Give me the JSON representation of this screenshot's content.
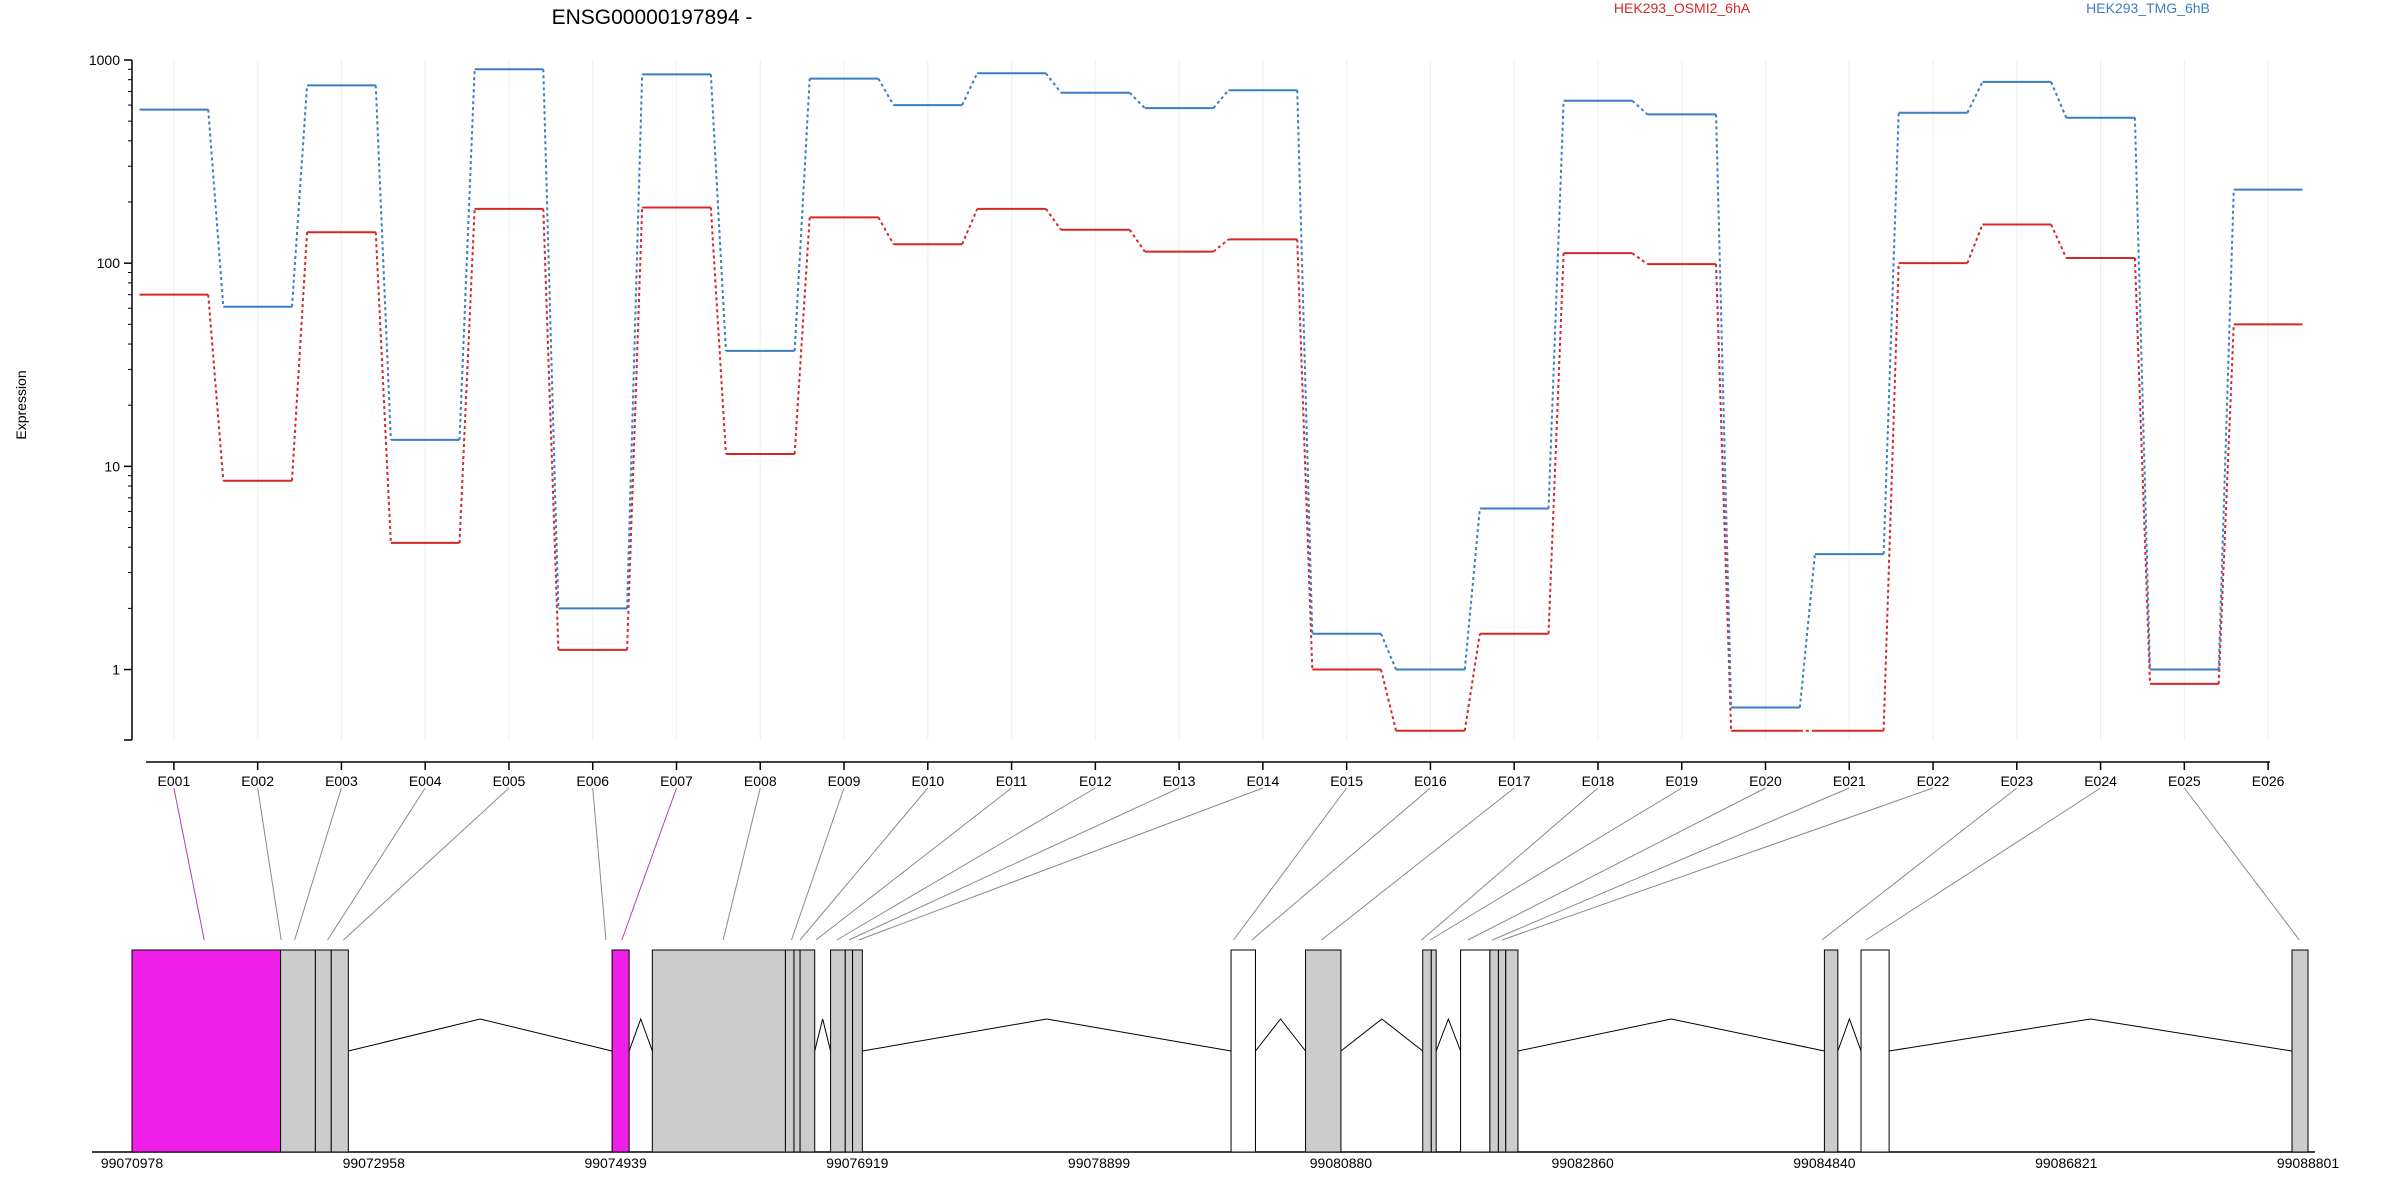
{
  "chart_data": {
    "type": "line",
    "title": "ENSG00000197894 -",
    "ylabel": "Expression",
    "yscale": "log",
    "ylim": [
      0.45,
      1000
    ],
    "yticks": [
      1,
      10,
      100,
      1000
    ],
    "ytick_labels": [
      "1",
      "10",
      "100",
      "1000"
    ],
    "grid": true,
    "legend_position": "top-right",
    "categories": [
      "E001",
      "E002",
      "E003",
      "E004",
      "E005",
      "E006",
      "E007",
      "E008",
      "E009",
      "E010",
      "E011",
      "E012",
      "E013",
      "E014",
      "E015",
      "E016",
      "E017",
      "E018",
      "E019",
      "E020",
      "E021",
      "E022",
      "E023",
      "E024",
      "E025",
      "E026"
    ],
    "series": [
      {
        "name": "HEK293_OSMI2_6hA",
        "color": "#d62728",
        "values": [
          70,
          8.5,
          142,
          4.2,
          185,
          1.25,
          188,
          11.5,
          168,
          124,
          185,
          146,
          114,
          131,
          1.0,
          0.5,
          1.5,
          112,
          99,
          0.5,
          0.5,
          100,
          155,
          106,
          0.85,
          50
        ]
      },
      {
        "name": "HEK293_TMG_6hB",
        "color": "#3b7dc4",
        "values": [
          570,
          61,
          750,
          13.5,
          900,
          2.0,
          850,
          37,
          810,
          600,
          860,
          690,
          580,
          710,
          1.5,
          1.0,
          6.2,
          630,
          540,
          0.65,
          3.7,
          550,
          780,
          520,
          1.0,
          230
        ]
      }
    ],
    "highlight_color": "#f01fe8",
    "gene_model": {
      "coordinate_labels": [
        "99070978",
        "99072958",
        "99074939",
        "99076919",
        "99078899",
        "99080880",
        "99082860",
        "99084840",
        "99086821",
        "99088801"
      ],
      "highlighted_exons": [
        "E001",
        "E007"
      ]
    }
  }
}
